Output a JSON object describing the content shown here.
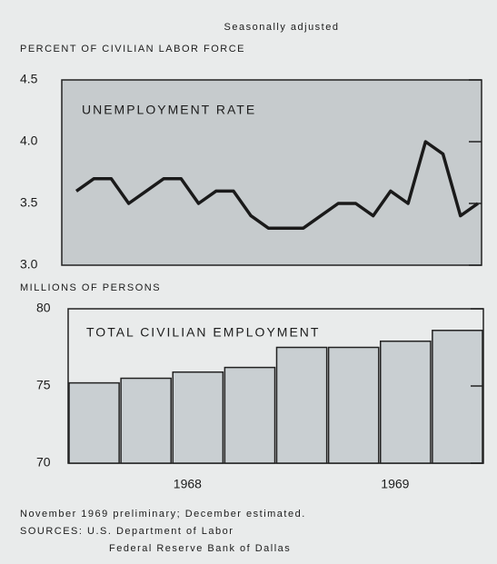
{
  "chart_data": [
    {
      "type": "line",
      "subtitle": "Seasonally adjusted",
      "axis_label": "PERCENT OF CIVILIAN LABOR FORCE",
      "title": "UNEMPLOYMENT RATE",
      "categories": [
        null,
        null,
        null,
        null,
        null,
        null,
        null,
        null,
        null,
        null,
        null,
        null,
        null,
        null,
        null,
        null,
        null,
        null,
        null,
        null,
        null,
        null,
        null,
        null
      ],
      "values": [
        3.6,
        3.7,
        3.7,
        3.5,
        3.6,
        3.7,
        3.7,
        3.5,
        3.6,
        3.6,
        3.4,
        3.3,
        3.3,
        3.3,
        3.4,
        3.5,
        3.5,
        3.4,
        3.6,
        3.5,
        4.0,
        3.9,
        3.4,
        3.5
      ],
      "color": "#1a1a1a",
      "ylim": [
        3.0,
        4.5
      ],
      "yticks": [
        {
          "value": 3.0,
          "label": "3.0"
        },
        3.5,
        {
          "value": 4.0,
          "label": "4.0"
        },
        4.5
      ]
    },
    {
      "type": "bar",
      "axis_label": "MILLIONS OF PERSONS",
      "title": "TOTAL CIVILIAN EMPLOYMENT",
      "categories": [
        null,
        null,
        null,
        null,
        null,
        null,
        null,
        null
      ],
      "values": [
        75.2,
        75.5,
        75.9,
        76.2,
        77.5,
        77.5,
        77.9,
        78.6
      ],
      "color": "#c9cfd2",
      "year_labels": [
        "1968",
        "1969"
      ],
      "ylim": [
        70,
        80
      ],
      "yticks": [
        70,
        75,
        80
      ]
    }
  ],
  "notes": [
    "November 1969 preliminary; December estimated.",
    "SOURCES: U.S. Department of Labor",
    "Federal Reserve Bank of Dallas"
  ]
}
